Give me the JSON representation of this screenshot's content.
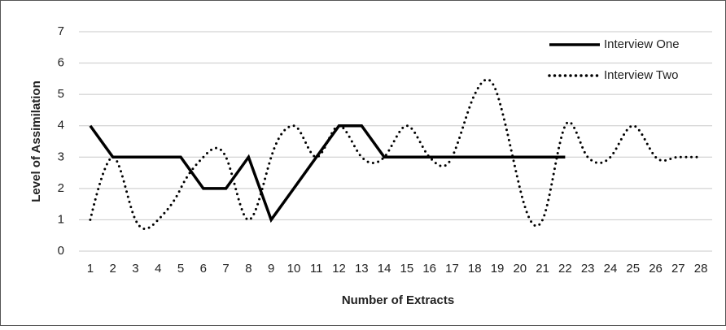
{
  "chart_data": {
    "type": "line",
    "xlabel": "Number of Extracts",
    "ylabel": "Level of Assimilation",
    "categories": [
      "1",
      "2",
      "3",
      "4",
      "5",
      "6",
      "7",
      "8",
      "9",
      "10",
      "11",
      "12",
      "13",
      "14",
      "15",
      "16",
      "17",
      "18",
      "19",
      "20",
      "21",
      "22",
      "23",
      "24",
      "25",
      "26",
      "27",
      "28"
    ],
    "series": [
      {
        "name": "Interview One",
        "color": "#000000",
        "style": "solid",
        "smooth": false,
        "values": [
          4,
          3,
          3,
          3,
          3,
          2,
          2,
          3,
          1,
          2,
          3,
          4,
          4,
          3,
          3,
          3,
          3,
          3,
          3,
          3,
          3,
          3,
          null,
          null,
          null,
          null,
          null,
          null
        ]
      },
      {
        "name": "Interview Two",
        "color": "#000000",
        "style": "dotted",
        "smooth": true,
        "values": [
          1,
          3,
          1,
          1,
          2,
          3,
          3,
          1,
          3,
          4,
          3,
          4,
          3,
          3,
          4,
          3,
          3,
          5,
          5,
          2,
          1,
          4,
          3,
          3,
          4,
          3,
          3,
          3
        ]
      }
    ],
    "ylim": [
      0,
      7
    ],
    "yticks": [
      0,
      1,
      2,
      3,
      4,
      5,
      6,
      7
    ],
    "grid": true,
    "legend": "upper right"
  }
}
